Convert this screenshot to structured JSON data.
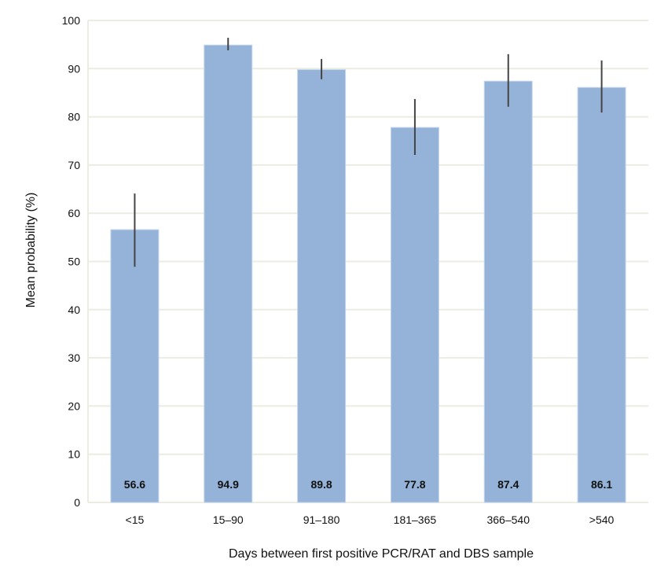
{
  "chart_data": {
    "type": "bar",
    "title": "",
    "xlabel": "Days between first positive PCR/RAT and DBS sample",
    "ylabel": "Mean probability (%)",
    "ylim": [
      0,
      100
    ],
    "yticks": [
      0,
      10,
      20,
      30,
      40,
      50,
      60,
      70,
      80,
      90,
      100
    ],
    "grid": true,
    "categories": [
      "<15",
      "15–90",
      "91–180",
      "181–365",
      "366–540",
      ">540"
    ],
    "values": [
      56.6,
      94.9,
      89.8,
      77.8,
      87.4,
      86.1
    ],
    "value_labels": [
      "56.6",
      "94.9",
      "89.8",
      "77.8",
      "87.4",
      "86.1"
    ],
    "error_low": [
      48.9,
      93.8,
      87.8,
      72.1,
      82.1,
      80.9
    ],
    "error_high": [
      64.1,
      96.4,
      92.0,
      83.7,
      93.0,
      91.7
    ],
    "colors": {
      "bar": "#95b3d8",
      "grid": "#ecece2",
      "error": "#444444"
    }
  }
}
